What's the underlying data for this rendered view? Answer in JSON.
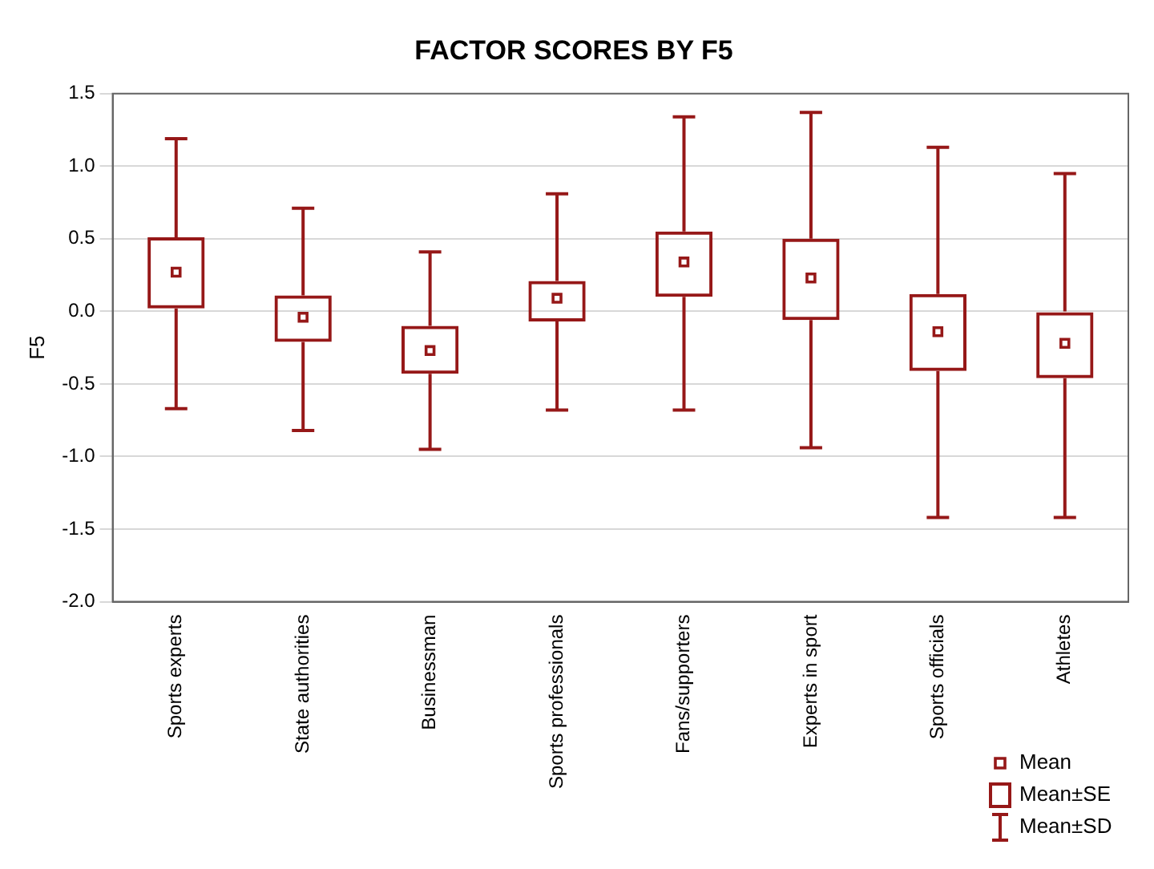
{
  "chart_data": {
    "type": "box",
    "title": "FACTOR SCORES BY F5",
    "ylabel": "F5",
    "categories": [
      "Sports experts",
      "State authorities",
      "Businessman",
      "Sports professionals",
      "Fans/supporters",
      "Experts in sport",
      "Sports officials",
      "Athletes"
    ],
    "series": [
      {
        "name": "Mean",
        "type": "scatter",
        "marker": "square",
        "color": "#961818",
        "values": [
          0.27,
          -0.04,
          -0.27,
          0.09,
          0.34,
          0.23,
          -0.14,
          -0.22
        ],
        "errors": [
          [
            -0.67,
            1.19
          ],
          [
            -0.82,
            0.71
          ],
          [
            -0.95,
            0.41
          ],
          [
            -0.68,
            0.81
          ],
          [
            -0.68,
            1.34
          ],
          [
            -0.94,
            1.37
          ],
          [
            -1.42,
            1.13
          ],
          [
            -1.42,
            0.95
          ]
        ]
      },
      {
        "name": "Mean±SE",
        "type": "bar",
        "color": "#961818",
        "base": [
          0.02,
          -0.21,
          -0.43,
          -0.07,
          0.1,
          -0.06,
          -0.41,
          -0.46
        ],
        "values": [
          0.49,
          0.32,
          0.33,
          0.28,
          0.45,
          0.56,
          0.53,
          0.46
        ]
      }
    ],
    "annotations": [
      "Mean±SD"
    ],
    "ylim": [
      -2.0,
      1.5
    ],
    "yticks": [
      1.5,
      {
        "value": 1.0,
        "label": "1.0"
      },
      0.5,
      {
        "value": 0,
        "label": "0.0"
      },
      -0.5,
      {
        "value": -1.0,
        "label": "-1.0"
      },
      -1.5,
      {
        "value": -2.0,
        "label": "-2.0"
      }
    ],
    "grid": "y",
    "legend": "bottom right"
  }
}
